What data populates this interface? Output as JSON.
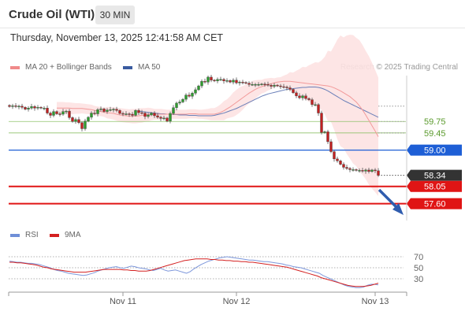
{
  "header": {
    "instrument": "Crude Oil (WTI)",
    "timeframe": "30 MIN",
    "datetime": "Thursday, November 13, 2025 12:41:58 AM CET"
  },
  "legend": {
    "bollinger_label": "MA 20 + Bollinger Bands",
    "bollinger_color": "#f08a8a",
    "ma50_label": "MA 50",
    "ma50_color": "#3a5ba0",
    "credit": "Research © 2025 Trading Central"
  },
  "rsi_legend": {
    "rsi_label": "RSI",
    "rsi_color": "#6f8fd8",
    "ma_label": "9MA",
    "ma_color": "#d42020"
  },
  "chart_data": [
    {
      "type": "candlestick",
      "ylim": [
        57.2,
        60.95
      ],
      "x_tick_labels": [
        "Nov 11",
        "Nov 12",
        "Nov 13"
      ],
      "x_tick_positions": [
        36,
        72,
        116
      ],
      "num_bars": 118,
      "price_levels": [
        {
          "value": 59.75,
          "label": "59.75",
          "kind": "resistance",
          "color": "#8fc26b"
        },
        {
          "value": 59.45,
          "label": "59.45",
          "kind": "resistance",
          "color": "#8fc26b"
        },
        {
          "value": 59.0,
          "label": "59.00",
          "kind": "pivot",
          "color": "#1e5fd6"
        },
        {
          "value": 58.34,
          "label": "58.34",
          "kind": "last",
          "color": "#333333"
        },
        {
          "value": 58.05,
          "label": "58.05",
          "kind": "support",
          "color": "#e01515"
        },
        {
          "value": 57.6,
          "label": "57.60",
          "kind": "support",
          "color": "#e01515"
        }
      ],
      "closes": [
        60.14,
        60.16,
        60.14,
        60.15,
        60.12,
        60.07,
        60.1,
        60.14,
        60.1,
        60.12,
        60.1,
        60.1,
        59.97,
        59.91,
        60.01,
        59.95,
        59.94,
        60.01,
        60.02,
        59.85,
        59.75,
        59.8,
        59.72,
        59.56,
        59.76,
        59.86,
        59.97,
        59.95,
        60.06,
        60.08,
        60.01,
        60.05,
        60.06,
        60.07,
        60.04,
        59.96,
        59.95,
        59.95,
        59.94,
        59.91,
        60.04,
        59.98,
        59.97,
        59.88,
        59.92,
        59.97,
        59.9,
        59.86,
        59.83,
        59.84,
        59.76,
        59.96,
        60.11,
        60.23,
        60.26,
        60.33,
        60.44,
        60.41,
        60.49,
        60.58,
        60.68,
        60.8,
        60.78,
        60.91,
        60.83,
        60.81,
        60.85,
        60.85,
        60.81,
        60.82,
        60.78,
        60.83,
        60.76,
        60.78,
        60.77,
        60.75,
        60.72,
        60.72,
        60.72,
        60.72,
        60.73,
        60.72,
        60.7,
        60.67,
        60.7,
        60.68,
        60.66,
        60.65,
        60.63,
        60.59,
        60.5,
        60.42,
        60.37,
        60.42,
        60.35,
        60.32,
        60.19,
        60.19,
        59.97,
        59.46,
        59.48,
        59.22,
        58.96,
        58.77,
        58.72,
        58.63,
        58.55,
        58.52,
        58.49,
        58.49,
        58.47,
        58.47,
        58.45,
        58.48,
        58.44,
        58.48,
        58.46,
        58.34
      ],
      "ma20": [
        60.1,
        60.1,
        60.1,
        60.1,
        60.1,
        60.09,
        60.09,
        60.09,
        60.09,
        60.08,
        60.07,
        60.06,
        60.04,
        60.02,
        60.01,
        59.99,
        59.98,
        59.97,
        59.96,
        59.94,
        59.92,
        59.91,
        59.9,
        59.89,
        59.89,
        59.89,
        59.9,
        59.91,
        59.92,
        59.93,
        59.94,
        59.94,
        59.94,
        59.94,
        59.94,
        59.94,
        59.94,
        59.94,
        59.94,
        59.94,
        59.94,
        59.94,
        59.95,
        59.95,
        59.95,
        59.94,
        59.94,
        59.94,
        59.94,
        59.94,
        59.94,
        59.96,
        59.99,
        60.03,
        60.08,
        60.13,
        60.19,
        60.25,
        60.31,
        60.37,
        60.43,
        60.49,
        60.54,
        60.59,
        60.63,
        60.66,
        60.69,
        60.72,
        60.74,
        60.76,
        60.78,
        60.79,
        60.8,
        60.8,
        60.8,
        60.79,
        60.78,
        60.77,
        60.76,
        60.75,
        60.74,
        60.73,
        60.72,
        60.71,
        60.7,
        60.69,
        60.68,
        60.66,
        60.63,
        60.59,
        60.55,
        60.5,
        60.45,
        60.4,
        60.33,
        60.26,
        60.16,
        60.05,
        59.92,
        59.78,
        59.64,
        59.5,
        59.35
      ],
      "ma50": [
        60.02,
        60.01,
        60.0,
        59.99,
        59.98,
        59.97,
        59.96,
        59.95,
        59.95,
        59.94,
        59.94,
        59.93,
        59.93,
        59.92,
        59.92,
        59.92,
        59.91,
        59.91,
        59.91,
        59.9,
        59.9,
        59.9,
        59.9,
        59.9,
        59.91,
        59.93,
        59.95,
        59.97,
        60.0,
        60.03,
        60.06,
        60.09,
        60.13,
        60.17,
        60.21,
        60.25,
        60.29,
        60.33,
        60.37,
        60.41,
        60.44,
        60.47,
        60.49,
        60.51,
        60.53,
        60.55,
        60.57,
        60.59,
        60.6,
        60.61,
        60.62,
        60.63,
        60.64,
        60.64,
        60.65,
        60.65,
        60.65,
        60.64,
        60.62,
        60.59,
        60.55,
        60.5,
        60.45,
        60.4,
        60.35,
        60.3,
        60.26,
        60.22,
        60.18,
        60.14,
        60.1,
        60.06,
        60.02,
        59.98,
        59.94,
        59.9,
        59.86
      ],
      "bb_width": [
        0.16,
        0.16,
        0.15,
        0.15,
        0.14,
        0.14,
        0.13,
        0.13,
        0.13,
        0.12,
        0.12,
        0.12,
        0.15,
        0.16,
        0.17,
        0.18,
        0.18,
        0.18,
        0.19,
        0.19,
        0.19,
        0.18,
        0.16,
        0.14,
        0.14,
        0.13,
        0.12,
        0.12,
        0.12,
        0.12,
        0.12,
        0.12,
        0.12,
        0.12,
        0.12,
        0.13,
        0.14,
        0.16,
        0.18,
        0.21,
        0.25,
        0.28,
        0.32,
        0.33,
        0.31,
        0.28,
        0.27,
        0.24,
        0.21,
        0.18,
        0.16,
        0.15,
        0.12,
        0.12,
        0.15,
        0.18,
        0.24,
        0.3,
        0.35,
        0.42,
        0.48,
        0.53,
        0.58,
        0.65,
        0.75,
        0.92,
        1.1,
        1.3,
        1.45,
        1.55,
        1.62,
        1.68,
        1.72,
        1.7,
        1.68,
        1.65,
        1.6,
        1.55
      ]
    },
    {
      "type": "line",
      "name": "RSI",
      "ylim": [
        10,
        90
      ],
      "y_tick_labels": [
        "70",
        "50",
        "30"
      ],
      "y_tick_values": [
        70,
        50,
        30
      ],
      "rsi": [
        62,
        61,
        60,
        60,
        59,
        58,
        58,
        57,
        56,
        54,
        52,
        50,
        47,
        45,
        44,
        42,
        40,
        39,
        38,
        37,
        36,
        37,
        39,
        41,
        44,
        46,
        48,
        50,
        51,
        52,
        50,
        49,
        51,
        53,
        52,
        50,
        49,
        48,
        46,
        45,
        47,
        49,
        46,
        44,
        45,
        46,
        44,
        42,
        40,
        43,
        48,
        52,
        56,
        59,
        62,
        64,
        66,
        68,
        69,
        70,
        69,
        68,
        67,
        66,
        65,
        64,
        64,
        63,
        62,
        61,
        61,
        60,
        59,
        58,
        57,
        55,
        54,
        52,
        51,
        50,
        48,
        46,
        44,
        42,
        40,
        36,
        33,
        30,
        27,
        24,
        21,
        18,
        16,
        15,
        14,
        14,
        15,
        18,
        20,
        20,
        19
      ],
      "ma9": [
        60,
        60,
        59,
        59,
        58,
        57,
        56,
        55,
        53,
        51,
        50,
        48,
        47,
        46,
        45,
        44,
        43,
        42,
        42,
        42,
        42,
        43,
        44,
        45,
        46,
        47,
        47,
        47,
        47,
        47,
        46,
        46,
        45,
        45,
        44,
        44,
        44,
        45,
        47,
        49,
        51,
        53,
        55,
        57,
        59,
        61,
        63,
        64,
        65,
        66,
        66,
        66,
        66,
        65,
        65,
        64,
        64,
        63,
        63,
        62,
        62,
        61,
        61,
        60,
        60,
        59,
        58,
        57,
        56,
        55,
        54,
        53,
        52,
        51,
        49,
        47,
        45,
        43,
        41,
        39,
        37,
        35,
        32,
        30,
        28,
        26,
        24,
        22,
        20,
        18,
        17,
        16,
        16,
        16,
        17,
        18,
        20,
        22
      ]
    }
  ]
}
